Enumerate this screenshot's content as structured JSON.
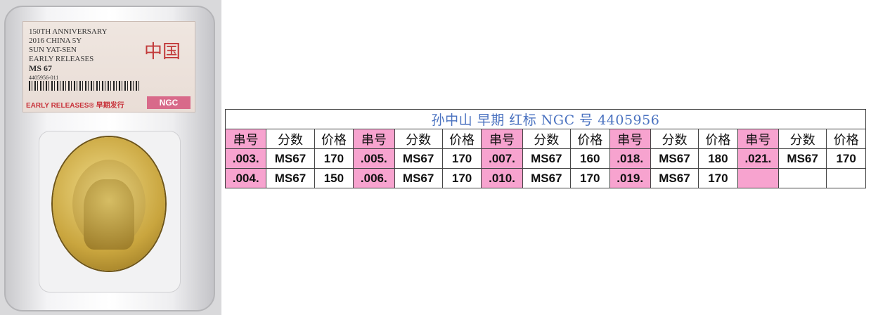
{
  "photo": {
    "label_lines": [
      "150TH ANNIVERSARY",
      "2016 CHINA 5Y",
      "SUN YAT-SEN",
      "EARLY RELEASES"
    ],
    "grade": "MS 67",
    "cert": "4405956-011",
    "country_chars": "中国",
    "early_releases": "EARLY RELEASES® 早期发行",
    "logo": "NGC"
  },
  "table": {
    "title": "孙中山 早期 红标 NGC 号 4405956",
    "headers": [
      "串号",
      "分数",
      "价格"
    ],
    "groups": [
      {
        "rows": [
          [
            ".003.",
            "MS67",
            "170"
          ],
          [
            ".004.",
            "MS67",
            "150"
          ]
        ]
      },
      {
        "rows": [
          [
            ".005.",
            "MS67",
            "170"
          ],
          [
            ".006.",
            "MS67",
            "170"
          ]
        ]
      },
      {
        "rows": [
          [
            ".007.",
            "MS67",
            "160"
          ],
          [
            ".010.",
            "MS67",
            "170"
          ]
        ]
      },
      {
        "rows": [
          [
            ".018.",
            "MS67",
            "180"
          ],
          [
            ".019.",
            "MS67",
            "170"
          ]
        ]
      },
      {
        "rows": [
          [
            ".021.",
            "MS67",
            "170"
          ],
          [
            "",
            "",
            ""
          ]
        ]
      }
    ],
    "highlight_color": "#f7a3cf",
    "title_color": "#4a72c0"
  }
}
